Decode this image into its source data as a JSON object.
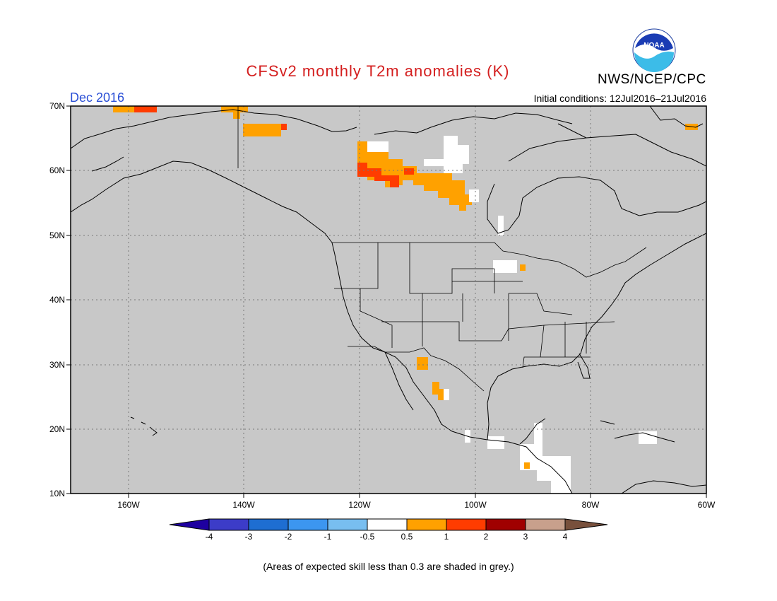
{
  "title": "CFSv2 monthly T2m anomalies (K)",
  "month": "Dec 2016",
  "org": "NWS/NCEP/CPC",
  "logo_text": "NOAA",
  "initial_conditions": "Initial conditions: 12Jul2016–21Jul2016",
  "footnote": "(Areas of expected skill less than 0.3 are shaded in grey.)",
  "map": {
    "lon_range": [
      -170,
      -60
    ],
    "lat_range": [
      10,
      70
    ],
    "background_color": "#c8c8c8",
    "lat_labels": [
      "70N",
      "60N",
      "50N",
      "40N",
      "30N",
      "20N",
      "10N"
    ],
    "lon_labels": [
      "160W",
      "140W",
      "120W",
      "100W",
      "80W",
      "60W"
    ],
    "anomaly_regions": [
      {
        "name": "Yukon / NW Territories warm",
        "level": "0.5 to 1",
        "color": "#ffa100"
      },
      {
        "name": "Northern Alberta / Saskatchewan warm",
        "level": "1 to 2",
        "color": "#ff3c00"
      },
      {
        "name": "Hudson Bay region near-normal",
        "level": "-0.5 to 0.5",
        "color": "#ffffff"
      },
      {
        "name": "Northern Mexico warm",
        "level": "0.5 to 1",
        "color": "#ffa100"
      },
      {
        "name": "Central America near-normal",
        "level": "-0.5 to 0.5",
        "color": "#ffffff"
      }
    ]
  },
  "colorbar": {
    "labels": [
      "-4",
      "-3",
      "-2",
      "-1",
      "-0.5",
      "0.5",
      "1",
      "2",
      "3",
      "4"
    ],
    "colors": [
      "#1e00a0",
      "#3c3cc8",
      "#1e6ed2",
      "#3c96f0",
      "#78bef0",
      "#ffffff",
      "#ffa100",
      "#ff3c00",
      "#a00000",
      "#c8a08c",
      "#78503c"
    ]
  }
}
